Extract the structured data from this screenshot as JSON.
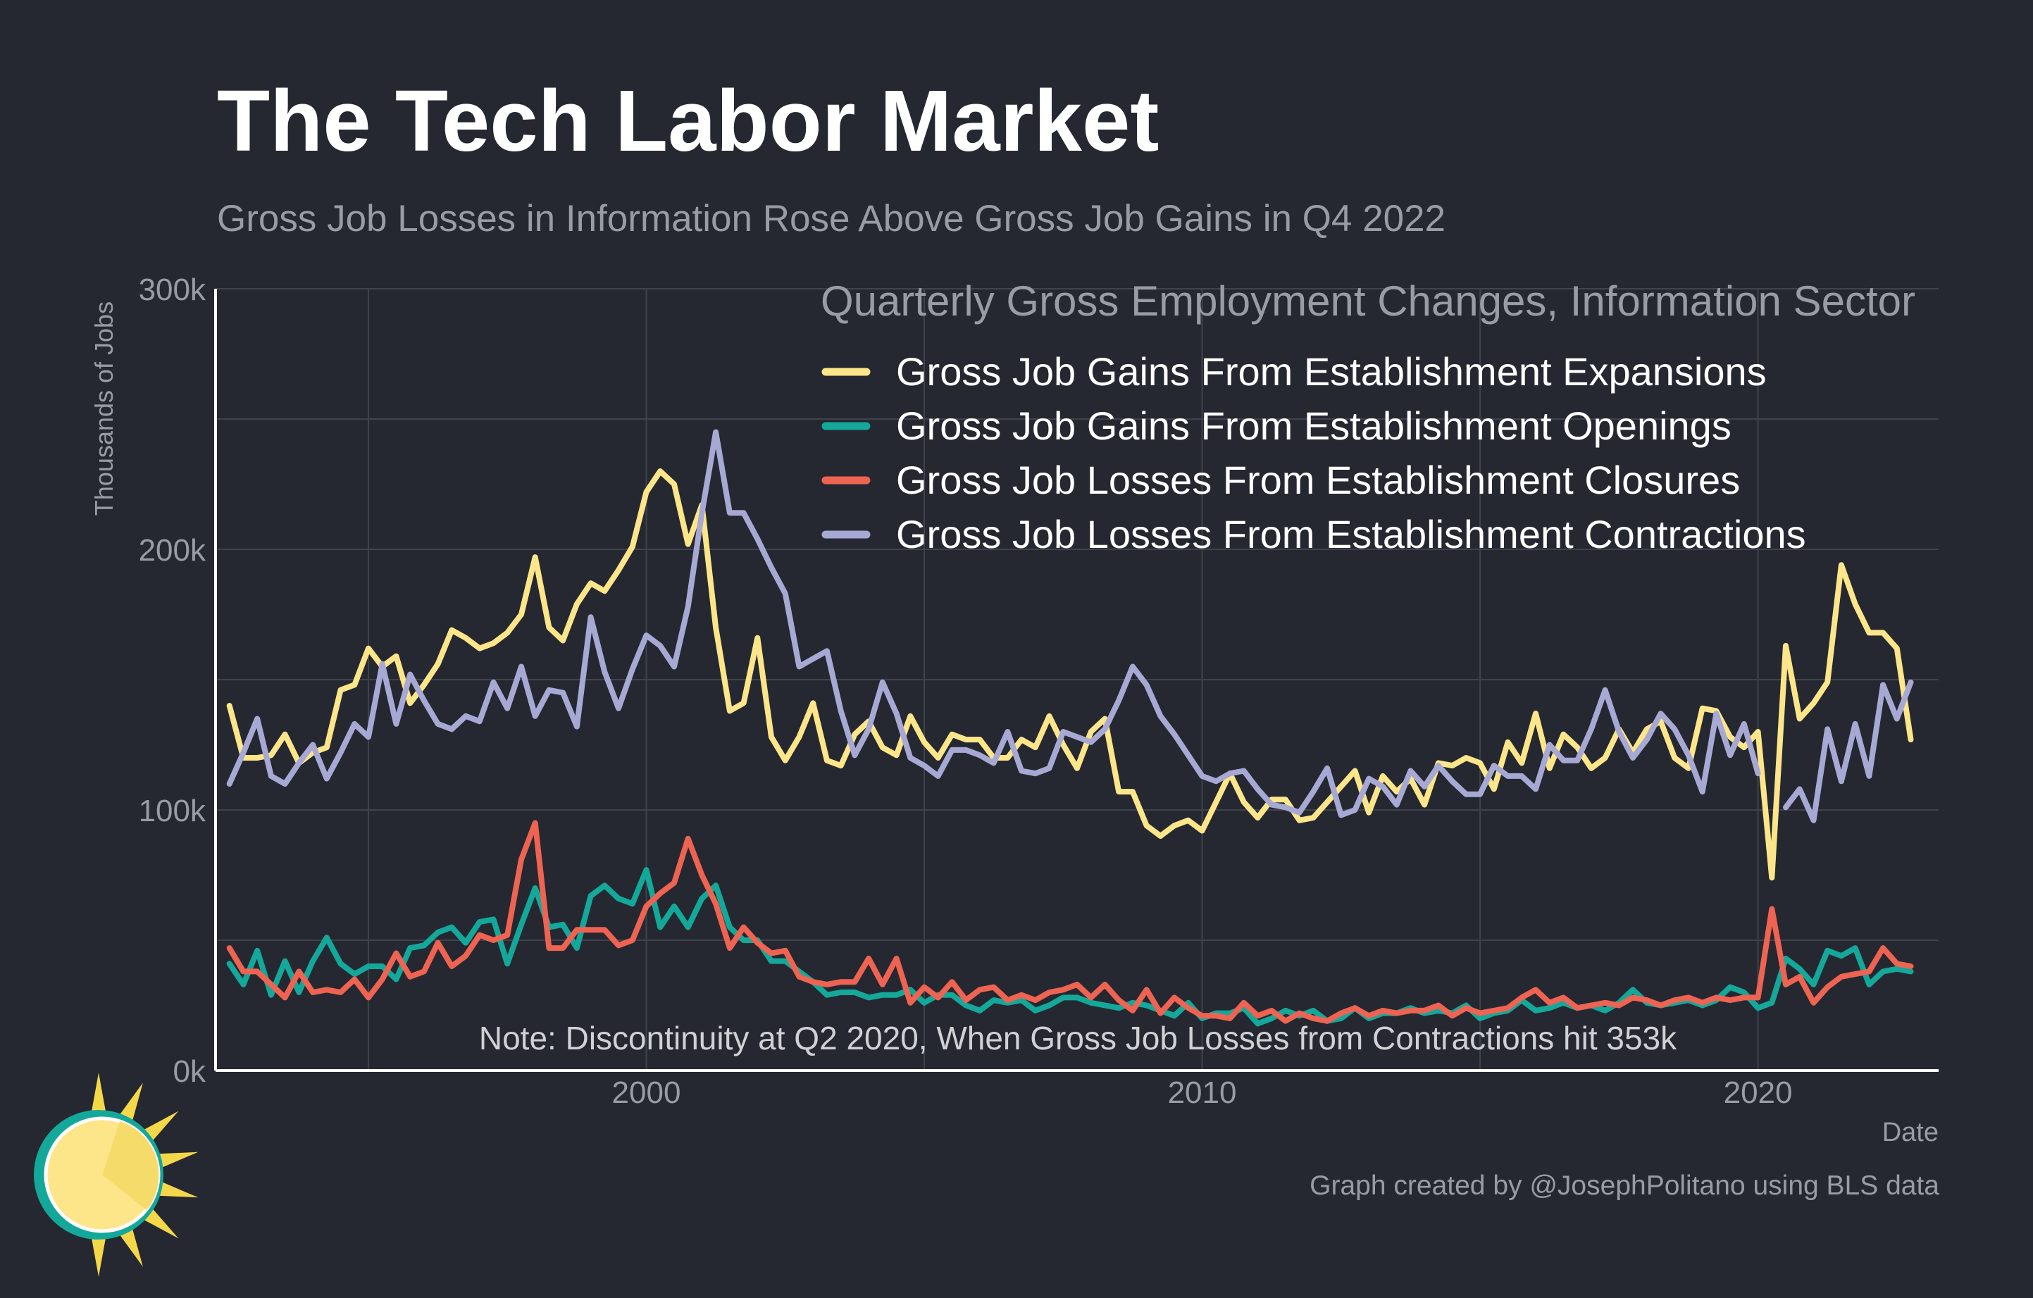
{
  "title": "The Tech Labor Market",
  "subtitle": "Gross Job Losses in Information Rose Above Gross Job Gains in Q4 2022",
  "caption": "Graph created by @JosephPolitano using BLS data",
  "chart_data": {
    "type": "line",
    "legend_title": "Quarterly Gross Employment Changes, Information Sector",
    "legend_position": "top-right",
    "xlabel": "Date",
    "ylabel": "Thousands of Jobs",
    "x_ticks": [
      "2000",
      "2010",
      "2020"
    ],
    "y_ticks": [
      "0k",
      "100k",
      "200k",
      "300k"
    ],
    "ylim": [
      0,
      300
    ],
    "xlim": [
      1992.25,
      2023.25
    ],
    "grid": true,
    "annotation": "Note: Discontinuity at Q2 2020, When Gross Job Losses from Contractions hit 353k",
    "x_start": "1992 Q3",
    "x_end": "2022 Q4",
    "series": [
      {
        "name": "Gross Job Gains From Establishment Expansions",
        "color": "#fde68a",
        "values": [
          140,
          120,
          120,
          121,
          129,
          118,
          122,
          124,
          146,
          148,
          162,
          155,
          159,
          141,
          148,
          156,
          169,
          166,
          162,
          164,
          168,
          175,
          197,
          170,
          165,
          179,
          187,
          184,
          192,
          201,
          222,
          230,
          225,
          202,
          217,
          170,
          138,
          141,
          166,
          128,
          119,
          128,
          141,
          119,
          117,
          129,
          134,
          124,
          121,
          136,
          126,
          120,
          129,
          127,
          127,
          120,
          120,
          127,
          124,
          136,
          125,
          116,
          130,
          135,
          107,
          107,
          94,
          90,
          94,
          96,
          92,
          103,
          114,
          103,
          97,
          104,
          104,
          96,
          97,
          103,
          109,
          115,
          99,
          113,
          107,
          112,
          102,
          118,
          117,
          120,
          118,
          108,
          126,
          118,
          137,
          116,
          129,
          124,
          116,
          120,
          131,
          122,
          131,
          134,
          120,
          116,
          139,
          138,
          128,
          124,
          130,
          74,
          163,
          135,
          141,
          149,
          194,
          179,
          168,
          168,
          162,
          127
        ]
      },
      {
        "name": "Gross Job Gains From Establishment Openings",
        "color": "#14a89a",
        "values": [
          41,
          33,
          46,
          29,
          42,
          30,
          42,
          51,
          41,
          37,
          40,
          40,
          35,
          47,
          48,
          53,
          55,
          49,
          57,
          58,
          41,
          56,
          70,
          55,
          56,
          47,
          67,
          71,
          66,
          64,
          77,
          55,
          63,
          55,
          66,
          71,
          55,
          50,
          50,
          42,
          42,
          38,
          34,
          29,
          30,
          30,
          28,
          29,
          29,
          31,
          26,
          29,
          29,
          25,
          23,
          27,
          26,
          27,
          23,
          25,
          28,
          28,
          26,
          25,
          24,
          26,
          25,
          23,
          21,
          26,
          20,
          22,
          22,
          24,
          18,
          20,
          23,
          21,
          23,
          19,
          20,
          24,
          20,
          22,
          22,
          24,
          22,
          23,
          22,
          25,
          20,
          22,
          23,
          27,
          23,
          24,
          26,
          24,
          25,
          23,
          26,
          31,
          26,
          25,
          26,
          27,
          25,
          27,
          32,
          30,
          24,
          26,
          43,
          39,
          33,
          46,
          44,
          47,
          33,
          38,
          39,
          38
        ]
      },
      {
        "name": "Gross Job Losses From Establishment Closures",
        "color": "#ee6352",
        "values": [
          47,
          38,
          38,
          33,
          28,
          38,
          30,
          31,
          30,
          35,
          28,
          35,
          45,
          36,
          38,
          49,
          40,
          44,
          52,
          50,
          52,
          81,
          95,
          47,
          47,
          54,
          54,
          54,
          48,
          50,
          63,
          68,
          72,
          89,
          75,
          64,
          47,
          55,
          49,
          45,
          46,
          36,
          34,
          33,
          34,
          34,
          43,
          33,
          43,
          26,
          32,
          28,
          34,
          27,
          31,
          32,
          27,
          29,
          27,
          30,
          31,
          33,
          28,
          33,
          27,
          23,
          31,
          22,
          28,
          24,
          21,
          21,
          20,
          26,
          21,
          23,
          19,
          22,
          20,
          19,
          22,
          24,
          21,
          23,
          22,
          23,
          23,
          25,
          21,
          24,
          22,
          23,
          24,
          28,
          31,
          26,
          28,
          24,
          25,
          26,
          25,
          28,
          27,
          25,
          27,
          28,
          26,
          28,
          27,
          28,
          28,
          62,
          33,
          36,
          26,
          32,
          36,
          37,
          38,
          47,
          41,
          40
        ]
      },
      {
        "name": "Gross Job Losses From Establishment Contractions",
        "color": "#a7a9d4",
        "values": [
          110,
          122,
          135,
          113,
          110,
          118,
          125,
          112,
          122,
          133,
          128,
          156,
          133,
          152,
          142,
          133,
          131,
          136,
          134,
          149,
          139,
          155,
          136,
          146,
          145,
          132,
          174,
          153,
          139,
          154,
          167,
          163,
          155,
          178,
          214,
          245,
          214,
          214,
          204,
          193,
          183,
          155,
          158,
          161,
          138,
          121,
          131,
          149,
          137,
          120,
          117,
          113,
          123,
          123,
          121,
          118,
          130,
          115,
          114,
          116,
          130,
          128,
          126,
          131,
          142,
          155,
          148,
          136,
          129,
          121,
          113,
          111,
          114,
          115,
          108,
          102,
          101,
          99,
          107,
          116,
          98,
          100,
          112,
          109,
          102,
          115,
          109,
          117,
          111,
          106,
          106,
          117,
          113,
          113,
          108,
          125,
          119,
          119,
          131,
          146,
          130,
          120,
          127,
          137,
          131,
          121,
          107,
          137,
          121,
          133,
          114,
          null,
          101,
          108,
          96,
          131,
          111,
          133,
          113,
          148,
          135,
          149
        ]
      }
    ]
  }
}
